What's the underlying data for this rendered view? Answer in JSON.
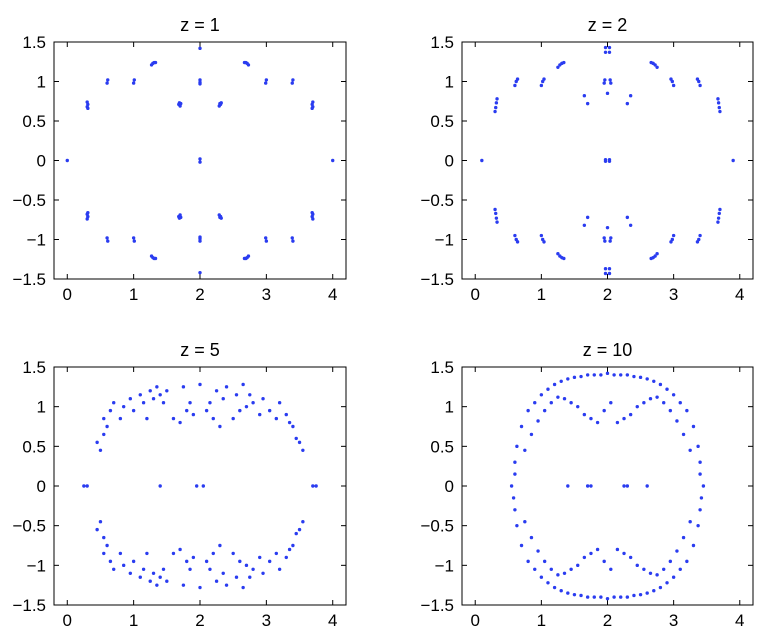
{
  "chart_data": [
    {
      "type": "scatter",
      "title": "z = 1",
      "xlim": [
        -0.2,
        4.2
      ],
      "ylim": [
        -1.5,
        1.5
      ],
      "x_ticks": [
        0,
        1,
        2,
        3,
        4
      ],
      "y_ticks": [
        -1.5,
        -1,
        -0.5,
        0,
        0.5,
        1,
        1.5
      ],
      "x_tick_labels": [
        "0",
        "1",
        "2",
        "3",
        "4"
      ],
      "y_tick_labels": [
        "−1.5",
        "−1",
        "−0.5",
        "0",
        "0.5",
        "1",
        "1.5"
      ],
      "grid": false,
      "marker_color": "#2a3cf0",
      "series": [
        {
          "x": [
            0,
            4,
            2,
            2,
            2,
            2,
            2,
            2,
            2,
            2,
            2,
            2,
            0.3,
            0.31,
            0.3,
            0.31,
            0.3,
            0.31,
            0.3,
            0.31,
            3.7,
            3.69,
            3.7,
            3.69,
            3.7,
            3.69,
            3.7,
            3.69,
            0.6,
            0.61,
            0.6,
            0.61,
            1,
            1.01,
            1,
            1.01,
            2.99,
            3,
            2.99,
            3,
            3.39,
            3.4,
            3.39,
            3.4,
            1.27,
            1.29,
            1.31,
            1.33,
            1.27,
            1.29,
            1.31,
            1.33,
            2.67,
            2.69,
            2.71,
            2.73,
            2.67,
            2.69,
            2.71,
            2.73,
            1.68,
            1.69,
            1.68,
            1.69,
            2.31,
            2.32,
            2.31,
            2.32,
            1.7,
            1.71,
            1.7,
            1.71,
            2.29,
            2.3,
            2.29,
            2.3
          ],
          "y": [
            0,
            0,
            1.42,
            -1.42,
            0.02,
            -0.02,
            0.97,
            1.02,
            0.99,
            -0.97,
            -1.02,
            -0.99,
            0.68,
            0.71,
            0.74,
            0.66,
            -0.68,
            -0.71,
            -0.74,
            -0.66,
            0.68,
            0.71,
            0.74,
            0.66,
            -0.68,
            -0.71,
            -0.74,
            -0.66,
            0.98,
            1.02,
            -0.98,
            -1.02,
            0.98,
            1.02,
            -0.98,
            -1.02,
            0.98,
            1.02,
            -0.98,
            -1.02,
            0.98,
            1.02,
            -0.98,
            -1.02,
            1.21,
            1.23,
            1.24,
            1.24,
            -1.21,
            -1.23,
            -1.24,
            -1.24,
            1.24,
            1.24,
            1.23,
            1.21,
            -1.24,
            -1.24,
            -1.23,
            -1.21,
            0.71,
            0.73,
            -0.71,
            -0.73,
            0.71,
            0.73,
            -0.71,
            -0.73,
            0.69,
            0.72,
            -0.69,
            -0.72,
            0.69,
            0.72,
            -0.69,
            -0.72
          ]
        }
      ]
    },
    {
      "type": "scatter",
      "title": "z = 2",
      "xlim": [
        -0.2,
        4.2
      ],
      "ylim": [
        -1.5,
        1.5
      ],
      "x_ticks": [
        0,
        1,
        2,
        3,
        4
      ],
      "y_ticks": [
        -1.5,
        -1,
        -0.5,
        0,
        0.5,
        1,
        1.5
      ],
      "x_tick_labels": [
        "0",
        "1",
        "2",
        "3",
        "4"
      ],
      "y_tick_labels": [
        "−1.5",
        "−1",
        "−0.5",
        "0",
        "0.5",
        "1",
        "1.5"
      ],
      "grid": false,
      "marker_color": "#2a3cf0",
      "series": [
        {
          "x": [
            0.1,
            3.9,
            1.97,
            2.03,
            1.97,
            2.03,
            1.97,
            2.03,
            1.97,
            2.03,
            1.97,
            2.03,
            1.97,
            2.03,
            1.95,
            2.05,
            1.96,
            2.04,
            2,
            1.95,
            2.05,
            1.96,
            2.04,
            2,
            0.3,
            0.31,
            0.32,
            0.33,
            0.3,
            0.31,
            0.32,
            0.33,
            3.67,
            3.68,
            3.69,
            3.7,
            3.67,
            3.68,
            3.69,
            3.7,
            0.6,
            0.62,
            0.64,
            0.6,
            0.62,
            0.64,
            1,
            1.02,
            1.04,
            1,
            1.02,
            1.04,
            2.96,
            2.98,
            3,
            2.96,
            2.98,
            3,
            3.36,
            3.38,
            3.4,
            3.36,
            3.38,
            3.4,
            1.25,
            1.28,
            1.31,
            1.34,
            1.25,
            1.28,
            1.31,
            1.34,
            2.66,
            2.69,
            2.72,
            2.75,
            2.66,
            2.69,
            2.72,
            2.75,
            1.65,
            1.7,
            1.65,
            1.7,
            2.3,
            2.35,
            2.3,
            2.35
          ],
          "y": [
            0,
            0,
            1.43,
            1.43,
            1.37,
            1.37,
            -1.43,
            -1.43,
            -1.37,
            -1.37,
            0.01,
            0.01,
            -0.01,
            -0.01,
            0.98,
            0.98,
            1.02,
            1.02,
            0.85,
            -0.98,
            -0.98,
            -1.02,
            -1.02,
            -0.85,
            0.62,
            0.67,
            0.73,
            0.78,
            -0.62,
            -0.67,
            -0.73,
            -0.78,
            0.78,
            0.73,
            0.67,
            0.62,
            -0.78,
            -0.73,
            -0.67,
            -0.62,
            0.95,
            1,
            1.03,
            -0.95,
            -1,
            -1.03,
            0.95,
            1,
            1.03,
            -0.95,
            -1,
            -1.03,
            1.03,
            1,
            0.95,
            -1.03,
            -1,
            -0.95,
            1.03,
            1,
            0.95,
            -1.03,
            -1,
            -0.95,
            1.18,
            1.21,
            1.23,
            1.24,
            -1.18,
            -1.21,
            -1.23,
            -1.24,
            1.24,
            1.23,
            1.21,
            1.18,
            -1.24,
            -1.23,
            -1.21,
            -1.18,
            0.82,
            0.72,
            -0.82,
            -0.72,
            0.72,
            0.82,
            -0.72,
            -0.82
          ]
        }
      ]
    },
    {
      "type": "scatter",
      "title": "z = 5",
      "xlim": [
        -0.2,
        4.2
      ],
      "ylim": [
        -1.5,
        1.5
      ],
      "x_ticks": [
        0,
        1,
        2,
        3,
        4
      ],
      "y_ticks": [
        -1.5,
        -1,
        -0.5,
        0,
        0.5,
        1,
        1.5
      ],
      "x_tick_labels": [
        "0",
        "1",
        "2",
        "3",
        "4"
      ],
      "y_tick_labels": [
        "−1.5",
        "−1",
        "−0.5",
        "0",
        "0.5",
        "1",
        "1.5"
      ],
      "grid": false,
      "marker_color": "#2a3cf0",
      "series": [
        {
          "x": [
            0.25,
            0.3,
            3.7,
            3.75,
            1.4,
            1.95,
            2.05,
            0.45,
            0.5,
            0.55,
            0.6,
            0.55,
            0.65,
            0.7,
            0.8,
            0.85,
            0.95,
            1,
            1.1,
            1.15,
            1.2,
            1.25,
            1.3,
            1.35,
            1.4,
            1.45,
            1.5,
            1.6,
            1.7,
            1.75,
            1.8,
            1.85,
            1.9,
            2,
            2.1,
            2.15,
            2.2,
            2.25,
            2.3,
            2.35,
            2.4,
            2.5,
            2.55,
            2.6,
            2.65,
            2.7,
            2.75,
            2.8,
            2.9,
            2.95,
            3.05,
            3.15,
            3.2,
            3.3,
            3.35,
            3.4,
            3.45,
            3.5,
            3.55,
            0.45,
            0.5,
            0.55,
            0.6,
            0.55,
            0.65,
            0.7,
            0.8,
            0.85,
            0.95,
            1,
            1.1,
            1.15,
            1.2,
            1.25,
            1.3,
            1.35,
            1.4,
            1.45,
            1.5,
            1.6,
            1.7,
            1.75,
            1.8,
            1.85,
            1.9,
            2,
            2.1,
            2.15,
            2.2,
            2.25,
            2.3,
            2.35,
            2.4,
            2.5,
            2.55,
            2.6,
            2.65,
            2.7,
            2.75,
            2.8,
            2.9,
            2.95,
            3.05,
            3.15,
            3.2,
            3.3,
            3.35,
            3.4,
            3.45,
            3.5,
            3.55
          ],
          "y": [
            0,
            0,
            0,
            0,
            0,
            0,
            0,
            0.55,
            0.45,
            0.65,
            0.75,
            0.85,
            0.95,
            1.05,
            0.85,
            1,
            1.1,
            0.95,
            1.15,
            1.05,
            0.85,
            1.2,
            1.1,
            1.25,
            1.15,
            1.05,
            1.2,
            0.85,
            0.8,
            1.25,
            0.95,
            1.05,
            0.9,
            1.28,
            0.95,
            1.05,
            0.85,
            1.2,
            0.75,
            1.1,
            1.25,
            0.85,
            1.15,
            0.95,
            1.28,
            1,
            1.15,
            1.05,
            0.9,
            1.1,
            0.95,
            0.85,
            1.05,
            0.9,
            0.8,
            0.75,
            0.6,
            0.55,
            0.45,
            -0.55,
            -0.45,
            -0.65,
            -0.75,
            -0.85,
            -0.95,
            -1.05,
            -0.85,
            -1,
            -1.1,
            -0.95,
            -1.15,
            -1.05,
            -0.85,
            -1.2,
            -1.1,
            -1.25,
            -1.15,
            -1.05,
            -1.2,
            -0.85,
            -0.8,
            -1.25,
            -0.95,
            -1.05,
            -0.9,
            -1.28,
            -0.95,
            -1.05,
            -0.85,
            -1.2,
            -0.75,
            -1.1,
            -1.25,
            -0.85,
            -1.15,
            -0.95,
            -1.28,
            -1,
            -1.15,
            -1.05,
            -0.9,
            -1.1,
            -0.95,
            -0.85,
            -1.05,
            -0.9,
            -0.8,
            -0.75,
            -0.6,
            -0.55,
            -0.45
          ]
        }
      ]
    },
    {
      "type": "scatter",
      "title": "z = 10",
      "xlim": [
        -0.2,
        4.2
      ],
      "ylim": [
        -1.5,
        1.5
      ],
      "x_ticks": [
        0,
        1,
        2,
        3,
        4
      ],
      "y_ticks": [
        -1.5,
        -1,
        -0.5,
        0,
        0.5,
        1,
        1.5
      ],
      "x_tick_labels": [
        "0",
        "1",
        "2",
        "3",
        "4"
      ],
      "y_tick_labels": [
        "−1.5",
        "−1",
        "−0.5",
        "0",
        "0.5",
        "1",
        "1.5"
      ],
      "grid": false,
      "marker_color": "#2a3cf0",
      "series": [
        {
          "x": [
            2,
            2,
            0.55,
            3.45,
            0.6,
            3.4,
            0.58,
            3.42,
            1.7,
            1.75,
            2.25,
            2.3,
            1.4,
            2.6,
            0.6,
            0.63,
            0.7,
            0.8,
            0.9,
            1,
            1.1,
            1.2,
            1.3,
            1.4,
            1.5,
            1.6,
            1.7,
            1.8,
            1.9,
            2.1,
            2.2,
            2.3,
            2.4,
            2.5,
            2.6,
            2.7,
            2.8,
            2.9,
            3,
            3.1,
            3.2,
            3.3,
            3.37,
            3.4,
            0.75,
            0.85,
            0.95,
            1.05,
            1.15,
            1.25,
            1.35,
            1.45,
            1.55,
            1.65,
            1.75,
            1.85,
            1.95,
            2.05,
            2.15,
            2.25,
            2.35,
            2.45,
            2.55,
            2.65,
            2.75,
            2.85,
            2.95,
            3.05,
            3.15,
            3.25,
            0.6,
            0.63,
            0.7,
            0.8,
            0.9,
            1,
            1.1,
            1.2,
            1.3,
            1.4,
            1.5,
            1.6,
            1.7,
            1.8,
            1.9,
            2.1,
            2.2,
            2.3,
            2.4,
            2.5,
            2.6,
            2.7,
            2.8,
            2.9,
            3,
            3.1,
            3.2,
            3.3,
            3.37,
            3.4,
            0.75,
            0.85,
            0.95,
            1.05,
            1.15,
            1.25,
            1.35,
            1.45,
            1.55,
            1.65,
            1.75,
            1.85,
            1.95,
            2.05,
            2.15,
            2.25,
            2.35,
            2.45,
            2.55,
            2.65,
            2.75,
            2.85,
            2.95,
            3.05,
            3.15,
            3.25
          ],
          "y": [
            1.42,
            -1.42,
            0,
            0,
            0.15,
            0.15,
            -0.15,
            -0.15,
            0,
            0,
            0,
            0,
            0,
            0,
            0.3,
            0.5,
            0.75,
            0.95,
            1.05,
            1.15,
            1.22,
            1.28,
            1.32,
            1.35,
            1.37,
            1.38,
            1.4,
            1.4,
            1.4,
            1.4,
            1.4,
            1.4,
            1.38,
            1.37,
            1.35,
            1.32,
            1.28,
            1.22,
            1.15,
            1.05,
            0.95,
            0.75,
            0.5,
            0.3,
            0.45,
            0.65,
            0.82,
            0.95,
            1.05,
            1.12,
            1.1,
            1.05,
            1,
            0.9,
            0.85,
            0.8,
            0.95,
            1.05,
            0.8,
            0.85,
            0.9,
            1,
            1.05,
            1.1,
            1.12,
            1.05,
            0.95,
            0.82,
            0.65,
            0.45,
            -0.3,
            -0.5,
            -0.75,
            -0.95,
            -1.05,
            -1.15,
            -1.22,
            -1.28,
            -1.32,
            -1.35,
            -1.37,
            -1.38,
            -1.4,
            -1.4,
            -1.4,
            -1.4,
            -1.4,
            -1.4,
            -1.38,
            -1.37,
            -1.35,
            -1.32,
            -1.28,
            -1.22,
            -1.15,
            -1.05,
            -0.95,
            -0.75,
            -0.5,
            -0.3,
            -0.45,
            -0.65,
            -0.82,
            -0.95,
            -1.05,
            -1.12,
            -1.1,
            -1.05,
            -1,
            -0.9,
            -0.85,
            -0.8,
            -0.95,
            -1.05,
            -0.8,
            -0.85,
            -0.9,
            -1,
            -1.05,
            -1.1,
            -1.12,
            -1.05,
            -0.95,
            -0.82,
            -0.65,
            -0.45
          ]
        }
      ]
    }
  ]
}
